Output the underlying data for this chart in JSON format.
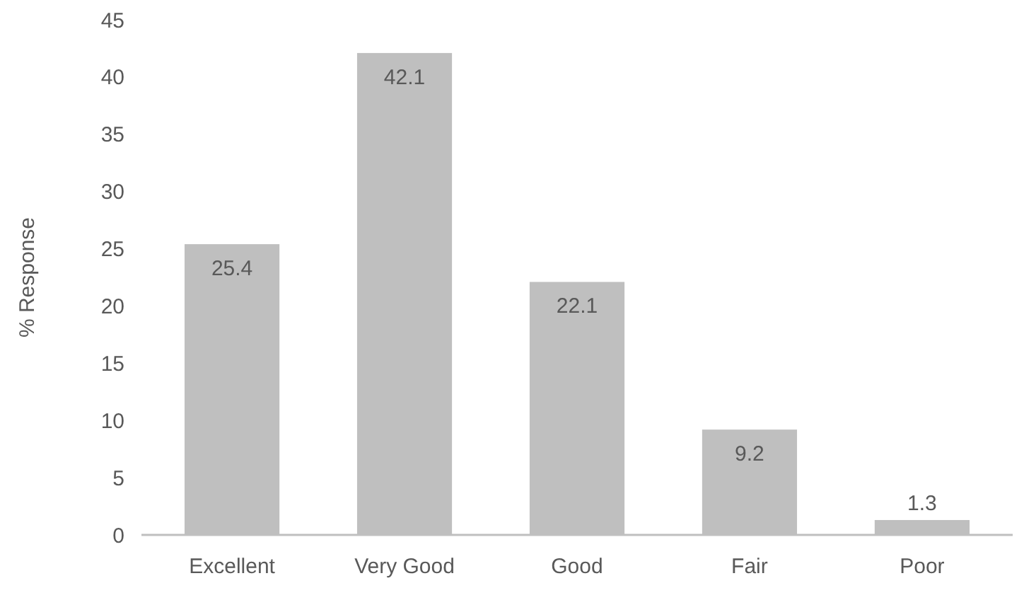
{
  "chart_data": {
    "type": "bar",
    "ylabel": "% Response",
    "categories": [
      "Excellent",
      "Very Good",
      "Good",
      "Fair",
      "Poor"
    ],
    "values": [
      25.4,
      42.1,
      22.1,
      9.2,
      1.3
    ],
    "color": "#bfbfbf",
    "ylim": [
      0,
      45
    ],
    "yticks": [
      0,
      5,
      10,
      15,
      20,
      25,
      30,
      35,
      40,
      45
    ],
    "grid": false,
    "data_labels": true
  }
}
